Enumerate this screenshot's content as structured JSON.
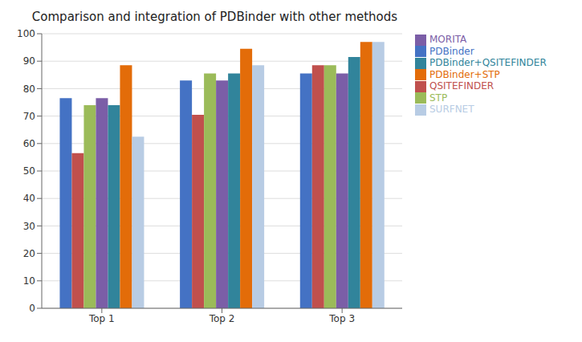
{
  "chart_data": {
    "type": "bar",
    "title": "Comparison and integration of PDBinder with other methods",
    "categories": [
      "Top 1",
      "Top 2",
      "Top 3"
    ],
    "series": [
      {
        "name": "PDBinder",
        "color": "#4472C4",
        "values": [
          76.5,
          83.0,
          85.5
        ]
      },
      {
        "name": "QSITEFINDER",
        "color": "#C0504D",
        "values": [
          56.5,
          70.5,
          88.5
        ]
      },
      {
        "name": "STP",
        "color": "#9BBB59",
        "values": [
          74.0,
          85.5,
          88.5
        ]
      },
      {
        "name": "MORITA",
        "color": "#7B5EA7",
        "values": [
          76.5,
          83.0,
          85.5
        ]
      },
      {
        "name": "PDBinder+QSITEFINDER",
        "color": "#31849B",
        "values": [
          74.0,
          85.5,
          91.5
        ]
      },
      {
        "name": "PDBinder+STP",
        "color": "#E36C09",
        "values": [
          88.5,
          94.5,
          97.0
        ]
      },
      {
        "name": "SURFNET",
        "color": "#B8CCE4",
        "values": [
          62.5,
          88.5,
          97.0
        ]
      }
    ],
    "ylim": [
      0,
      100
    ],
    "yticks": [
      0,
      10,
      20,
      30,
      40,
      50,
      60,
      70,
      80,
      90,
      100
    ],
    "grid": true,
    "legend": "right"
  }
}
